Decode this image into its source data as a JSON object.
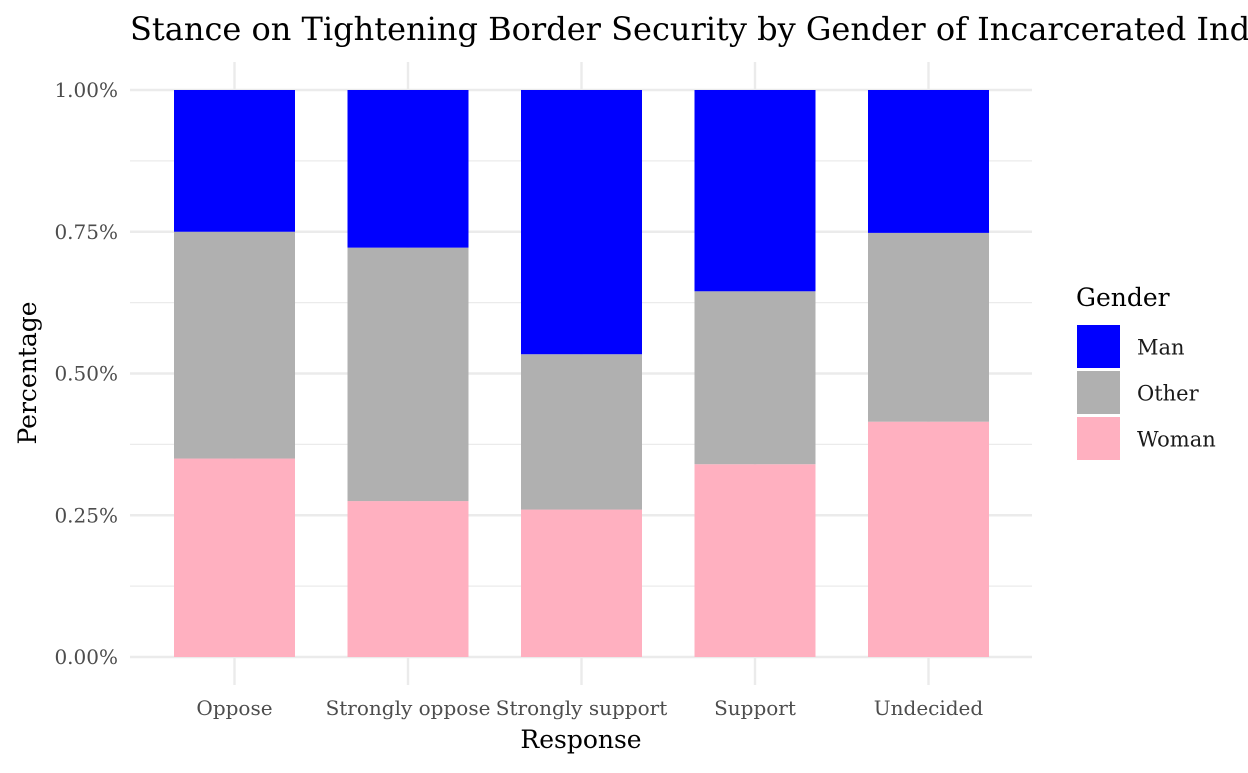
{
  "chart_data": {
    "type": "bar",
    "stacked": true,
    "title": "Stance on Tightening Border Security by Gender of Incarcerated Individuals",
    "xlabel": "Response",
    "ylabel": "Percentage",
    "categories": [
      "Oppose",
      "Strongly oppose",
      "Strongly support",
      "Support",
      "Undecided"
    ],
    "ylim": [
      0,
      1
    ],
    "yticks": [
      0,
      0.25,
      0.5,
      0.75,
      1.0
    ],
    "ytick_labels": [
      "0.00%",
      "0.25%",
      "0.50%",
      "0.75%",
      "1.00%"
    ],
    "grid": true,
    "legend": {
      "title": "Gender",
      "placement": "right"
    },
    "series": [
      {
        "name": "Woman",
        "color": "#FFB0C0",
        "values": [
          0.35,
          0.275,
          0.26,
          0.34,
          0.415
        ]
      },
      {
        "name": "Other",
        "color": "#B0B0B0",
        "values": [
          0.4,
          0.447,
          0.274,
          0.305,
          0.333
        ]
      },
      {
        "name": "Man",
        "color": "#0000FF",
        "values": [
          0.25,
          0.278,
          0.466,
          0.355,
          0.252
        ]
      }
    ]
  }
}
